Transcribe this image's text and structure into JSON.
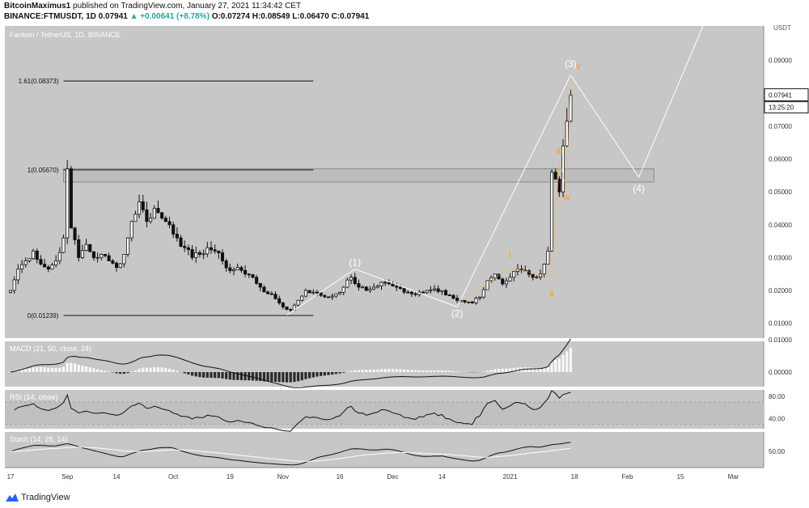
{
  "header": {
    "publisher": "BitcoinMaximus1",
    "published_text": " published on TradingView.com, January 27, 2021 11:34:42 CET",
    "symbol": "BINANCE:FTMUSDT, 1D",
    "last": "0.07941",
    "change": "▲ +0.00641 (+8.78%)",
    "ohlc": "O:0.07274 H:0.08549 L:0.06470 C:0.07941"
  },
  "footer": {
    "brand": "TradingView",
    "logo_icon": "tradingview-logo-icon"
  },
  "colors": {
    "background": "#c7c7c7",
    "up": "#ffffff",
    "down": "#111111",
    "wave": "#ff9800",
    "fib": "#111111"
  },
  "chart_data": {
    "type": "candlestick",
    "title": "Fantom / TetherUS, 1D, BINANCE",
    "ylabel": "USDT",
    "y_ticks": [
      "0.01000",
      "0.02000",
      "0.03000",
      "0.04000",
      "0.05000",
      "0.06000",
      "0.07000",
      "0.08000",
      "0.09000"
    ],
    "ylim": [
      0.0055,
      0.1005
    ],
    "x_ticks": [
      "17",
      "Sep",
      "14",
      "Oct",
      "19",
      "Nov",
      "16",
      "Dec",
      "14",
      "2021",
      "18",
      "Feb",
      "15",
      "Mar"
    ],
    "x_tick_days": [
      0,
      15,
      28,
      43,
      58,
      72,
      87,
      101,
      114,
      132,
      149,
      163,
      177,
      191
    ],
    "xlim": [
      -1.5,
      199
    ],
    "last_price_label": "0.07941",
    "countdown_label": "13:25:20",
    "price_path": [
      [
        0,
        0.02
      ],
      [
        2,
        0.0265
      ],
      [
        4,
        0.029
      ],
      [
        6,
        0.032
      ],
      [
        8,
        0.028
      ],
      [
        10,
        0.0265
      ],
      [
        12,
        0.029
      ],
      [
        14,
        0.036
      ],
      [
        15,
        0.057
      ],
      [
        16,
        0.039
      ],
      [
        18,
        0.03
      ],
      [
        20,
        0.034
      ],
      [
        22,
        0.03
      ],
      [
        24,
        0.031
      ],
      [
        26,
        0.029
      ],
      [
        28,
        0.027
      ],
      [
        30,
        0.031
      ],
      [
        32,
        0.041
      ],
      [
        34,
        0.047
      ],
      [
        36,
        0.041
      ],
      [
        38,
        0.045
      ],
      [
        40,
        0.042
      ],
      [
        42,
        0.04
      ],
      [
        44,
        0.036
      ],
      [
        46,
        0.033
      ],
      [
        48,
        0.03
      ],
      [
        50,
        0.031
      ],
      [
        52,
        0.033
      ],
      [
        54,
        0.032
      ],
      [
        56,
        0.029
      ],
      [
        58,
        0.026
      ],
      [
        60,
        0.027
      ],
      [
        62,
        0.025
      ],
      [
        64,
        0.024
      ],
      [
        66,
        0.021
      ],
      [
        68,
        0.019
      ],
      [
        70,
        0.0175
      ],
      [
        72,
        0.015
      ],
      [
        74,
        0.014
      ],
      [
        76,
        0.017
      ],
      [
        78,
        0.02
      ],
      [
        80,
        0.0195
      ],
      [
        82,
        0.0185
      ],
      [
        84,
        0.018
      ],
      [
        86,
        0.019
      ],
      [
        88,
        0.021
      ],
      [
        90,
        0.024
      ],
      [
        92,
        0.021
      ],
      [
        94,
        0.02
      ],
      [
        96,
        0.021
      ],
      [
        98,
        0.0225
      ],
      [
        100,
        0.022
      ],
      [
        102,
        0.021
      ],
      [
        104,
        0.0195
      ],
      [
        106,
        0.019
      ],
      [
        108,
        0.0195
      ],
      [
        110,
        0.02
      ],
      [
        112,
        0.0205
      ],
      [
        114,
        0.02
      ],
      [
        116,
        0.0185
      ],
      [
        118,
        0.017
      ],
      [
        120,
        0.0165
      ],
      [
        122,
        0.0162
      ],
      [
        124,
        0.018
      ],
      [
        126,
        0.023
      ],
      [
        128,
        0.025
      ],
      [
        130,
        0.022
      ],
      [
        132,
        0.024
      ],
      [
        134,
        0.0265
      ],
      [
        136,
        0.026
      ],
      [
        138,
        0.024
      ],
      [
        140,
        0.025
      ],
      [
        142,
        0.032
      ],
      [
        143,
        0.056
      ],
      [
        145,
        0.05
      ],
      [
        146,
        0.064
      ],
      [
        147,
        0.0715
      ],
      [
        148,
        0.0794
      ]
    ],
    "fib_levels": [
      {
        "label": "1.61(0.08373)",
        "value": 0.08373
      },
      {
        "label": "1(0.05670)",
        "value": 0.0567
      },
      {
        "label": "0(0.01239)",
        "value": 0.01239
      }
    ],
    "fib_x_range": [
      14,
      80
    ],
    "zone": {
      "x_start": 14,
      "x_end": 170,
      "low": 0.053,
      "high": 0.057
    },
    "wave_labels": [
      {
        "text": "(1)",
        "x": 91,
        "y": 0.0275,
        "color": "#ffffff"
      },
      {
        "text": "(2)",
        "x": 118,
        "y": 0.012,
        "color": "#ffffff"
      },
      {
        "text": "(3)",
        "x": 148,
        "y": 0.088,
        "color": "#ffffff"
      },
      {
        "text": "(4)",
        "x": 166,
        "y": 0.05,
        "color": "#ffffff"
      },
      {
        "text": "i",
        "x": 132,
        "y": 0.03,
        "color": "#ff9800"
      },
      {
        "text": "ii",
        "x": 143,
        "y": 0.018,
        "color": "#ff9800"
      },
      {
        "text": "iii",
        "x": 145,
        "y": 0.0615,
        "color": "#ff9800"
      },
      {
        "text": "iv",
        "x": 147,
        "y": 0.0475,
        "color": "#ff9800"
      },
      {
        "text": "v",
        "x": 150,
        "y": 0.0875,
        "color": "#ff9800"
      }
    ],
    "projection": [
      [
        73,
        0.0125
      ],
      [
        91,
        0.0265
      ],
      [
        118,
        0.015
      ],
      [
        148,
        0.0855
      ],
      [
        166,
        0.0545
      ],
      [
        183,
        0.1005
      ]
    ],
    "indicators": [
      {
        "name": "MACD (21, 50, close, 24)",
        "ticks": [
          "0.01000",
          "0.00000"
        ],
        "range": [
          -0.0045,
          0.0095
        ],
        "tick_values": [
          0.01,
          0.0
        ]
      },
      {
        "name": "RSI (14, close)",
        "ticks": [
          "80.00",
          "40.00"
        ],
        "range": [
          22,
          92
        ],
        "tick_values": [
          80,
          40
        ],
        "bands": [
          70,
          30
        ]
      },
      {
        "name": "Stoch (14, 28, 14)",
        "ticks": [
          "50.00"
        ],
        "range": [
          0,
          110
        ],
        "tick_values": [
          50
        ]
      }
    ]
  }
}
